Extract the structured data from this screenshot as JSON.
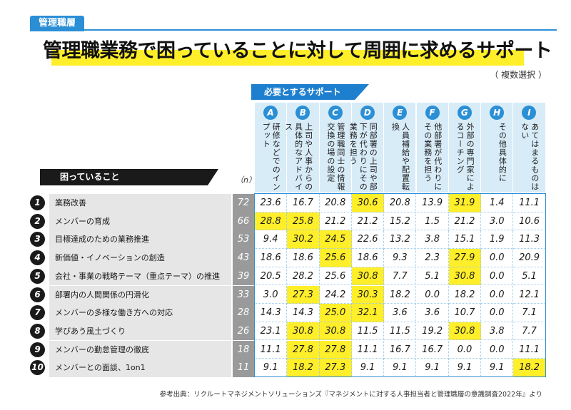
{
  "tag": "管理職層",
  "title": "管理職業務で困っていることに対して周囲に求めるサポート",
  "subnote": "（ 複数選択 ）",
  "support_label": "必要とするサポート",
  "problems_label": "困っていること",
  "n_label": "（n）",
  "columns": [
    {
      "letter": "A",
      "text": "研修などでのインプット"
    },
    {
      "letter": "B",
      "text": "上司や人事からの具体的なアドバイス"
    },
    {
      "letter": "C",
      "text": "管理職同士の情報交換の場の設定"
    },
    {
      "letter": "D",
      "text": "同部署の上司や部下が代わりにその業務を担う"
    },
    {
      "letter": "E",
      "text": "人員補給や配置転換"
    },
    {
      "letter": "F",
      "text": "他部署が代わりにその業務を担う"
    },
    {
      "letter": "G",
      "text": "外部の専門家によるコーチング"
    },
    {
      "letter": "H",
      "text": "その他具体的に"
    },
    {
      "letter": "I",
      "text": "あてはまるものはない"
    }
  ],
  "rows": [
    {
      "num": "1",
      "label": "業務改善",
      "n": "72",
      "values": [
        "23.6",
        "16.7",
        "20.8",
        "30.6",
        "20.8",
        "13.9",
        "31.9",
        "1.4",
        "11.1"
      ],
      "highlight": [
        3,
        6
      ]
    },
    {
      "num": "2",
      "label": "メンバーの育成",
      "n": "66",
      "values": [
        "28.8",
        "25.8",
        "21.2",
        "21.2",
        "15.2",
        "1.5",
        "21.2",
        "3.0",
        "10.6"
      ],
      "highlight": [
        0,
        1
      ]
    },
    {
      "num": "3",
      "label": "目標達成のための業務推進",
      "n": "53",
      "values": [
        "9.4",
        "30.2",
        "24.5",
        "22.6",
        "13.2",
        "3.8",
        "15.1",
        "1.9",
        "11.3"
      ],
      "highlight": [
        1,
        2
      ]
    },
    {
      "num": "4",
      "label": "新価値・イノベーションの創造",
      "n": "43",
      "values": [
        "18.6",
        "18.6",
        "25.6",
        "18.6",
        "9.3",
        "2.3",
        "27.9",
        "0.0",
        "20.9"
      ],
      "highlight": [
        2,
        6
      ]
    },
    {
      "num": "5",
      "label": "会社・事業の戦略テーマ（重点テーマ）の推進",
      "n": "39",
      "values": [
        "20.5",
        "28.2",
        "25.6",
        "30.8",
        "7.7",
        "5.1",
        "30.8",
        "0.0",
        "5.1"
      ],
      "highlight": [
        3,
        6
      ]
    },
    {
      "num": "6",
      "label": "部署内の人間関係の円滑化",
      "n": "33",
      "values": [
        "3.0",
        "27.3",
        "24.2",
        "30.3",
        "18.2",
        "0.0",
        "18.2",
        "0.0",
        "12.1"
      ],
      "highlight": [
        1,
        3
      ]
    },
    {
      "num": "7",
      "label": "メンバーの多様な働き方への対応",
      "n": "28",
      "values": [
        "14.3",
        "14.3",
        "25.0",
        "32.1",
        "3.6",
        "3.6",
        "10.7",
        "0.0",
        "7.1"
      ],
      "highlight": [
        2,
        3
      ]
    },
    {
      "num": "8",
      "label": "学びあう風土づくり",
      "n": "26",
      "values": [
        "23.1",
        "30.8",
        "30.8",
        "11.5",
        "11.5",
        "19.2",
        "30.8",
        "3.8",
        "7.7"
      ],
      "highlight": [
        1,
        2,
        6
      ]
    },
    {
      "num": "9",
      "label": "メンバーの勤怠管理の徹底",
      "n": "18",
      "values": [
        "11.1",
        "27.8",
        "27.8",
        "11.1",
        "16.7",
        "16.7",
        "0.0",
        "0.0",
        "11.1"
      ],
      "highlight": [
        1,
        2
      ]
    },
    {
      "num": "10",
      "label": "メンバーとの面談、1on1",
      "n": "11",
      "values": [
        "9.1",
        "18.2",
        "27.3",
        "9.1",
        "9.1",
        "9.1",
        "9.1",
        "9.1",
        "18.2"
      ],
      "highlight": [
        1,
        2,
        8
      ]
    }
  ],
  "source": "参考出典：リクルートマネジメントソリューションズ『マネジメントに対する人事担当者と管理職層の意識調査2022年』より",
  "colors": {
    "accent": "#2b8fd6",
    "highlight": "#ffee2a",
    "header_bg": "#d8ecf8"
  }
}
